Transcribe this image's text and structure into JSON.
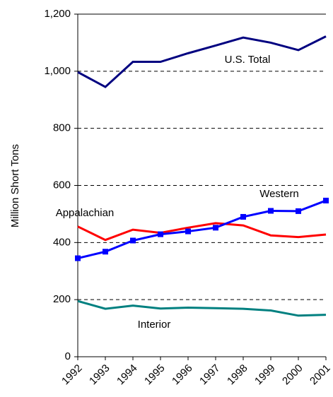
{
  "chart_data": {
    "type": "line",
    "y_label": "Million Short Tons",
    "x": [
      1992,
      1993,
      1994,
      1995,
      1996,
      1997,
      1998,
      1999,
      2000,
      2001
    ],
    "xlim": [
      1992,
      2001
    ],
    "xticks": [
      1992,
      1993,
      1994,
      1995,
      1996,
      1997,
      1998,
      1999,
      2000,
      2001
    ],
    "ylim": [
      0,
      1200
    ],
    "yticks": [
      0,
      200,
      400,
      600,
      800,
      {
        "value": 1000,
        "label": "1,000"
      },
      {
        "value": 1200,
        "label": "1,200"
      }
    ],
    "grid": true,
    "series": [
      {
        "name": "U.S. Total",
        "color": "#000080",
        "values": [
          997,
          945,
          1033,
          1033,
          1063,
          1090,
          1118,
          1100,
          1074,
          1122
        ]
      },
      {
        "name": "Appalachian",
        "color": "#ff0000",
        "values": [
          456,
          409,
          445,
          434,
          452,
          468,
          460,
          425,
          419,
          428
        ]
      },
      {
        "name": "Western",
        "color": "#0000ff",
        "marker": "square",
        "values": [
          345,
          368,
          407,
          429,
          439,
          452,
          490,
          511,
          510,
          547
        ]
      },
      {
        "name": "Interior",
        "color": "#008080",
        "values": [
          195,
          168,
          179,
          169,
          172,
          170,
          168,
          162,
          144,
          147
        ]
      }
    ]
  }
}
